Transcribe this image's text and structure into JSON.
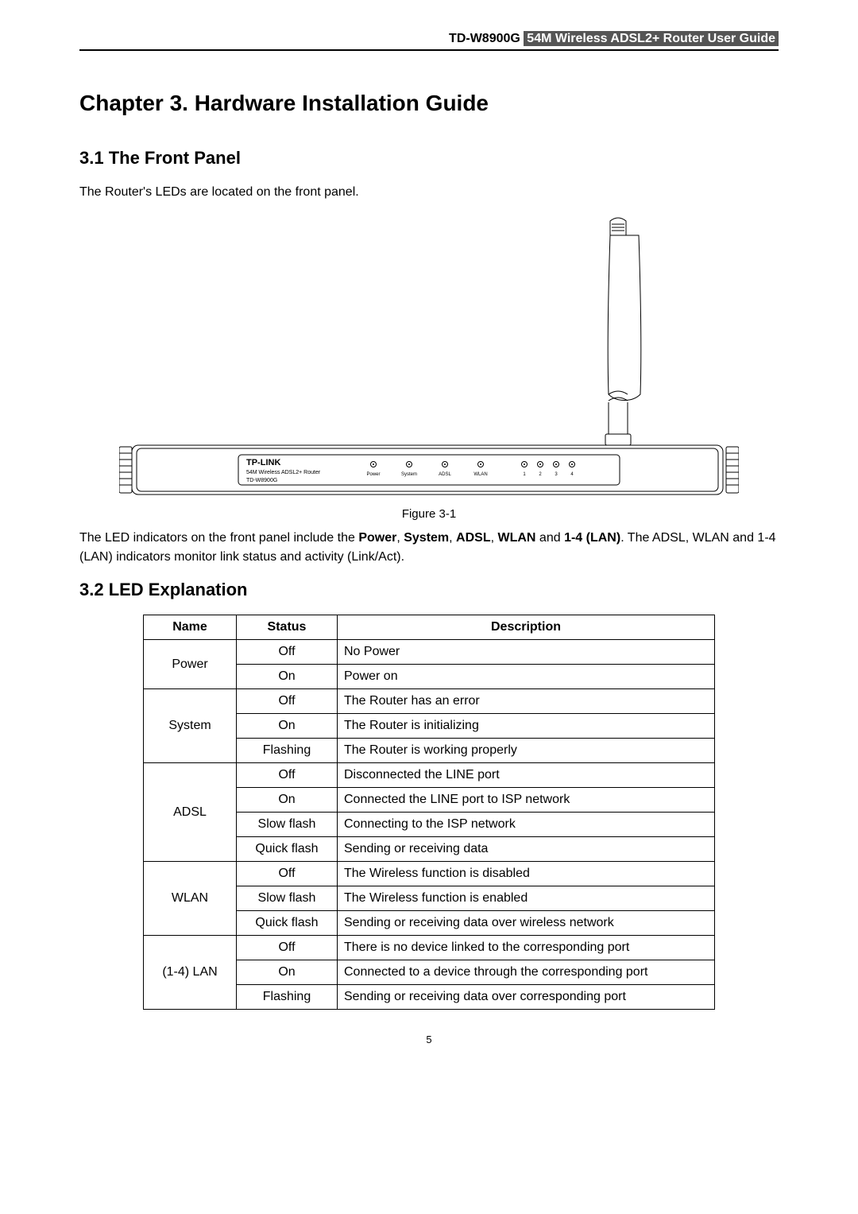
{
  "header": {
    "model": "TD-W8900G",
    "title_highlight": "54M Wireless ADSL2+ Router User Guide"
  },
  "chapter_title": "Chapter 3.   Hardware Installation Guide",
  "section1": {
    "heading": "3.1   The Front Panel",
    "para": "The Router's LEDs are located on the front panel."
  },
  "figure": {
    "caption": "Figure 3-1",
    "brand": "TP-LINK",
    "sublabel1": "54M Wireless ADSL2+ Router",
    "sublabel2": "TD-W8900G",
    "leds": [
      "Power",
      "System",
      "ADSL",
      "WLAN",
      "1",
      "2",
      "3",
      "4"
    ]
  },
  "after_figure_para_parts": [
    "The LED indicators on the front panel include the ",
    "Power",
    ", ",
    "System",
    ", ",
    "ADSL",
    ", ",
    "WLAN",
    " and ",
    "1-4 (LAN)",
    ". The ADSL, WLAN and 1-4 (LAN) indicators monitor link status and activity (Link/Act)."
  ],
  "section2": {
    "heading": "3.2   LED Explanation"
  },
  "table": {
    "headers": [
      "Name",
      "Status",
      "Description"
    ],
    "rows": [
      {
        "name": "Power",
        "status": "Off",
        "desc": "No Power",
        "rowspan": 2
      },
      {
        "status": "On",
        "desc": "Power on"
      },
      {
        "name": "System",
        "status": "Off",
        "desc": "The Router has an error",
        "rowspan": 3
      },
      {
        "status": "On",
        "desc": "The Router is initializing"
      },
      {
        "status": "Flashing",
        "desc": "The Router is working properly"
      },
      {
        "name": "ADSL",
        "status": "Off",
        "desc": "Disconnected the LINE port",
        "rowspan": 4
      },
      {
        "status": "On",
        "desc": "Connected the LINE port to ISP network"
      },
      {
        "status": "Slow flash",
        "desc": "Connecting to the ISP network"
      },
      {
        "status": "Quick flash",
        "desc": "Sending or receiving data"
      },
      {
        "name": "WLAN",
        "status": "Off",
        "desc": "The Wireless function is disabled",
        "rowspan": 3
      },
      {
        "status": "Slow flash",
        "desc": "The Wireless function is enabled"
      },
      {
        "status": "Quick flash",
        "desc": "Sending or receiving data over wireless network"
      },
      {
        "name": "(1-4) LAN",
        "status": "Off",
        "desc": "There is no device linked to the corresponding port",
        "rowspan": 3
      },
      {
        "status": "On",
        "desc": "Connected to a device through the corresponding port"
      },
      {
        "status": "Flashing",
        "desc": "Sending or receiving data over corresponding port"
      }
    ]
  },
  "page_number": "5",
  "colors": {
    "text": "#000000",
    "header_highlight_bg": "#555555",
    "header_highlight_fg": "#ffffff"
  }
}
